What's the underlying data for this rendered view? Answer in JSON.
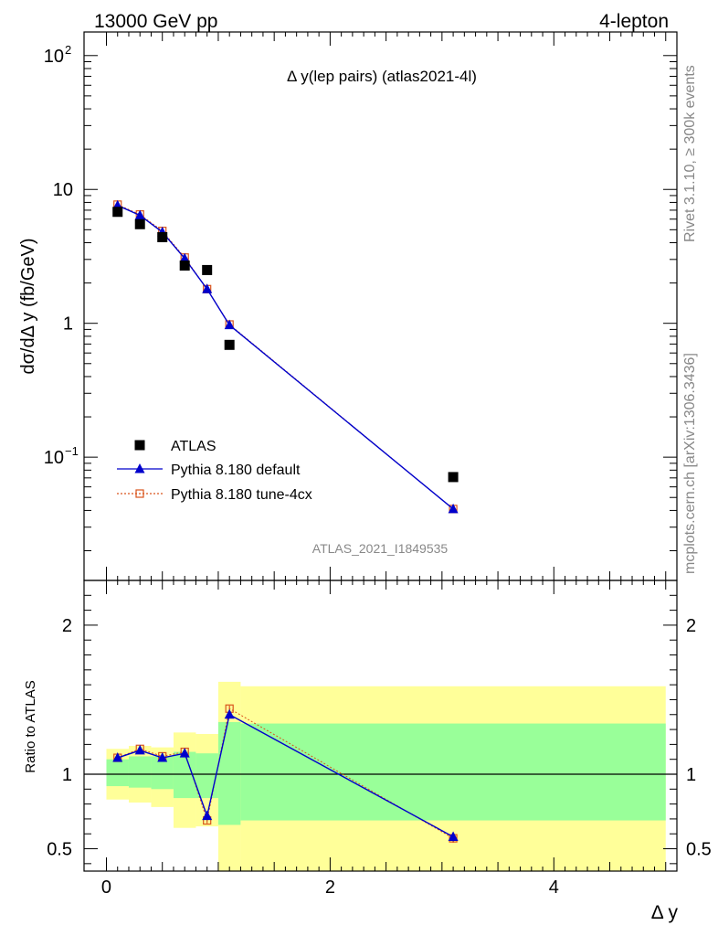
{
  "header": {
    "left": "13000 GeV pp",
    "right": "4-lepton"
  },
  "side_labels": {
    "rivet": "Rivet 3.1.10, ≥ 300k events",
    "mcplots": "mcplots.cern.ch [arXiv:1306.3436]"
  },
  "watermark": "ATLAS_2021_I1849535",
  "chart_data": [
    {
      "type": "scatter",
      "panel": "main",
      "title": "Δ y(lep pairs) (atlas2021-4l)",
      "ylabel": "dσ/dΔ y (fb/GeV)",
      "yscale": "log",
      "ylim": [
        0.012,
        150
      ],
      "xlim": [
        -0.2,
        5.1
      ],
      "y_ticks": [
        {
          "label": "10",
          "sup": "2"
        },
        {
          "label": "10",
          "sup": ""
        },
        {
          "label": "1",
          "sup": ""
        },
        {
          "label": "10",
          "sup": "−1"
        }
      ],
      "legend_position": "lower-left",
      "series": [
        {
          "name": "ATLAS",
          "color": "#000000",
          "marker": "square",
          "x": [
            0.1,
            0.3,
            0.5,
            0.7,
            0.9,
            1.1,
            3.1
          ],
          "y": [
            6.8,
            5.5,
            4.4,
            2.7,
            2.5,
            0.69,
            0.071
          ]
        },
        {
          "name": "Pythia 8.180 default",
          "color": "#0000cc",
          "marker": "triangle",
          "x": [
            0.1,
            0.3,
            0.5,
            0.7,
            0.9,
            1.1,
            3.1
          ],
          "y": [
            7.6,
            6.4,
            4.8,
            3.05,
            1.8,
            0.97,
            0.041
          ]
        },
        {
          "name": "Pythia 8.180 tune-4cx",
          "color": "#d9541c",
          "marker": "open-square",
          "x": [
            0.1,
            0.3,
            0.5,
            0.7,
            0.9,
            1.1,
            3.1
          ],
          "y": [
            7.7,
            6.5,
            4.9,
            3.1,
            1.8,
            0.98,
            0.041
          ]
        }
      ]
    },
    {
      "type": "scatter",
      "panel": "ratio",
      "ylabel": "Ratio to ATLAS",
      "xlabel": "Δ y",
      "ylim": [
        0.35,
        2.3
      ],
      "y_ticks": [
        "0.5",
        "1",
        "2"
      ],
      "x_ticks": [
        "0",
        "2",
        "4"
      ],
      "reference_line": 1,
      "bins": [
        {
          "xlo": 0.0,
          "xhi": 0.2,
          "stat": [
            0.92,
            1.1
          ],
          "total": [
            0.83,
            1.17
          ]
        },
        {
          "xlo": 0.2,
          "xhi": 0.4,
          "stat": [
            0.91,
            1.12
          ],
          "total": [
            0.81,
            1.19
          ]
        },
        {
          "xlo": 0.4,
          "xhi": 0.6,
          "stat": [
            0.9,
            1.12
          ],
          "total": [
            0.78,
            1.18
          ]
        },
        {
          "xlo": 0.6,
          "xhi": 0.8,
          "stat": [
            0.84,
            1.15
          ],
          "total": [
            0.64,
            1.28
          ]
        },
        {
          "xlo": 0.8,
          "xhi": 1.0,
          "stat": [
            0.84,
            1.14
          ],
          "total": [
            0.65,
            1.27
          ]
        },
        {
          "xlo": 1.0,
          "xhi": 1.2,
          "stat": [
            0.66,
            1.35
          ],
          "total": [
            0.35,
            1.62
          ]
        },
        {
          "xlo": 1.2,
          "xhi": 5.0,
          "stat": [
            0.69,
            1.34
          ],
          "total": [
            0.35,
            1.59
          ]
        }
      ],
      "band_colors": {
        "stat": "#99ff99",
        "total": "#ffff99"
      },
      "series": [
        {
          "name": "Pythia 8.180 default",
          "color": "#0000cc",
          "x": [
            0.1,
            0.3,
            0.5,
            0.7,
            0.9,
            1.1,
            3.1
          ],
          "y": [
            1.11,
            1.16,
            1.11,
            1.14,
            0.72,
            1.4,
            0.58
          ],
          "err": [
            0.02,
            0.02,
            0.02,
            0.02,
            0.02,
            0.02,
            0.03
          ]
        },
        {
          "name": "Pythia 8.180 tune-4cx",
          "color": "#d9541c",
          "x": [
            0.1,
            0.3,
            0.5,
            0.7,
            0.9,
            1.1,
            3.1
          ],
          "y": [
            1.11,
            1.17,
            1.12,
            1.15,
            0.69,
            1.44,
            0.57
          ],
          "err": [
            0.02,
            0.02,
            0.02,
            0.02,
            0.02,
            0.02,
            0.03
          ]
        }
      ]
    }
  ]
}
